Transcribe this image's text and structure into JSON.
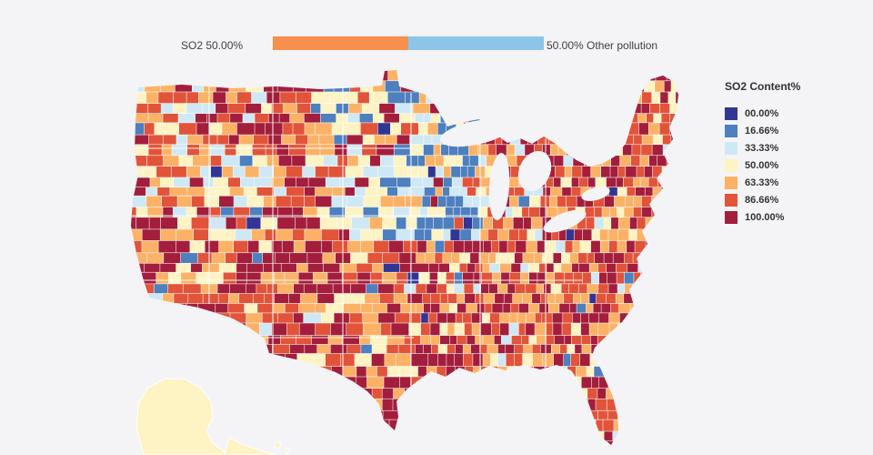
{
  "topbar": {
    "so2_label": "SO2 50.00%",
    "other_label": "50.00% Other pollution",
    "so2_pct": 50,
    "other_pct": 50,
    "so2_color": "#f7904e",
    "other_color": "#8cc5e8"
  },
  "legend": {
    "title": "SO2 Content%",
    "items": [
      {
        "label": "00.00%",
        "color": "#313695"
      },
      {
        "label": "16.66%",
        "color": "#4e7fbe"
      },
      {
        "label": "33.33%",
        "color": "#cfe8f5"
      },
      {
        "label": "50.00%",
        "color": "#fdf3c3"
      },
      {
        "label": "63.33%",
        "color": "#fcb266"
      },
      {
        "label": "86.66%",
        "color": "#e1543a"
      },
      {
        "label": "100.00%",
        "color": "#a31e3c"
      }
    ]
  },
  "map": {
    "name": "usa-so2-county-choropleth",
    "background": "#f4f4f6",
    "alaska_class_label": "50.00%"
  },
  "chart_data": {
    "type": "choropleth",
    "title": "SO2 Content%",
    "region": "United States counties",
    "classes": [
      "00.00%",
      "16.66%",
      "33.33%",
      "50.00%",
      "63.33%",
      "86.66%",
      "100.00%"
    ],
    "class_colors": [
      "#313695",
      "#4e7fbe",
      "#cfe8f5",
      "#fdf3c3",
      "#fcb266",
      "#e1543a",
      "#a31e3c"
    ],
    "stacked_bar": {
      "categories": [
        "SO2",
        "Other pollution"
      ],
      "values": [
        50.0,
        50.0
      ]
    },
    "notes_visible": "Most counties shaded in 63.33%-100.00% classes; north-central plains (Dakotas/Minnesota) show 00.00%-50.00% blue/cream classes; Alaska shaded in 50.00% class"
  }
}
